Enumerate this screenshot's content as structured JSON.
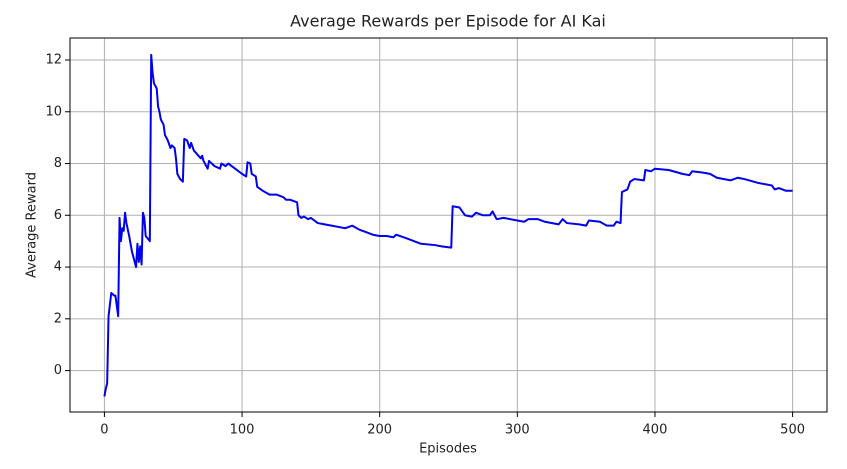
{
  "chart_data": {
    "type": "line",
    "title": "Average Rewards per Episode for AI Kai",
    "xlabel": "Episodes",
    "ylabel": "Average Reward",
    "x": [
      0,
      1,
      2,
      3,
      5,
      7,
      8,
      10,
      11,
      12,
      13,
      14,
      15,
      16,
      18,
      20,
      22,
      23,
      24,
      25,
      26,
      27,
      28,
      29,
      30,
      33,
      34,
      35,
      36,
      38,
      39,
      40,
      41,
      43,
      44,
      46,
      48,
      49,
      51,
      52,
      53,
      55,
      57,
      58,
      60,
      62,
      63,
      65,
      70,
      71,
      72,
      75,
      76,
      80,
      84,
      85,
      88,
      90,
      95,
      100,
      103,
      104,
      106,
      107,
      110,
      111,
      115,
      120,
      125,
      130,
      132,
      135,
      140,
      141,
      143,
      145,
      148,
      150,
      155,
      160,
      165,
      170,
      175,
      180,
      185,
      190,
      195,
      200,
      205,
      210,
      212,
      220,
      225,
      230,
      240,
      245,
      252,
      253,
      258,
      262,
      267,
      270,
      275,
      280,
      282,
      285,
      290,
      300,
      305,
      308,
      315,
      320,
      330,
      333,
      336,
      345,
      350,
      352,
      360,
      365,
      370,
      372,
      375,
      376,
      380,
      382,
      385,
      392,
      393,
      397,
      400,
      410,
      420,
      425,
      427,
      435,
      440,
      445,
      455,
      460,
      465,
      475,
      485,
      487,
      490,
      495,
      500
    ],
    "series": [
      {
        "name": "Average Reward",
        "color": "#0000ee",
        "values": [
          -1,
          -0.7,
          -0.5,
          2.1,
          3.0,
          2.9,
          2.9,
          2.1,
          5.9,
          5.0,
          5.5,
          5.4,
          6.1,
          5.7,
          5.2,
          4.6,
          4.2,
          4.0,
          4.9,
          4.2,
          4.8,
          4.1,
          6.1,
          5.9,
          5.2,
          5.0,
          12.2,
          11.5,
          11.1,
          10.9,
          10.2,
          10.0,
          9.7,
          9.5,
          9.1,
          8.9,
          8.6,
          8.7,
          8.6,
          8.2,
          7.6,
          7.4,
          7.3,
          8.95,
          8.9,
          8.6,
          8.8,
          8.5,
          8.2,
          8.3,
          8.1,
          7.8,
          8.1,
          7.9,
          7.8,
          8.0,
          7.9,
          8.0,
          7.8,
          7.6,
          7.5,
          8.05,
          8.0,
          7.6,
          7.5,
          7.1,
          6.95,
          6.8,
          6.8,
          6.7,
          6.6,
          6.6,
          6.5,
          6.0,
          5.9,
          5.95,
          5.85,
          5.9,
          5.7,
          5.65,
          5.6,
          5.55,
          5.5,
          5.6,
          5.45,
          5.35,
          5.25,
          5.2,
          5.2,
          5.15,
          5.25,
          5.1,
          5.0,
          4.9,
          4.85,
          4.8,
          4.75,
          6.35,
          6.3,
          6.0,
          5.95,
          6.1,
          6.0,
          6.0,
          6.15,
          5.85,
          5.9,
          5.8,
          5.75,
          5.85,
          5.85,
          5.75,
          5.65,
          5.85,
          5.7,
          5.65,
          5.6,
          5.8,
          5.75,
          5.6,
          5.6,
          5.75,
          5.7,
          6.9,
          7.0,
          7.3,
          7.4,
          7.35,
          7.75,
          7.7,
          7.8,
          7.75,
          7.6,
          7.55,
          7.7,
          7.65,
          7.6,
          7.45,
          7.35,
          7.45,
          7.4,
          7.25,
          7.15,
          7.0,
          7.05,
          6.95,
          6.95
        ]
      }
    ],
    "xlim": [
      -25,
      525
    ],
    "ylim": [
      -1.6,
      12.85
    ],
    "xticks": [
      0,
      100,
      200,
      300,
      400,
      500
    ],
    "yticks": [
      0,
      2,
      4,
      6,
      8,
      10,
      12
    ],
    "grid": true
  }
}
